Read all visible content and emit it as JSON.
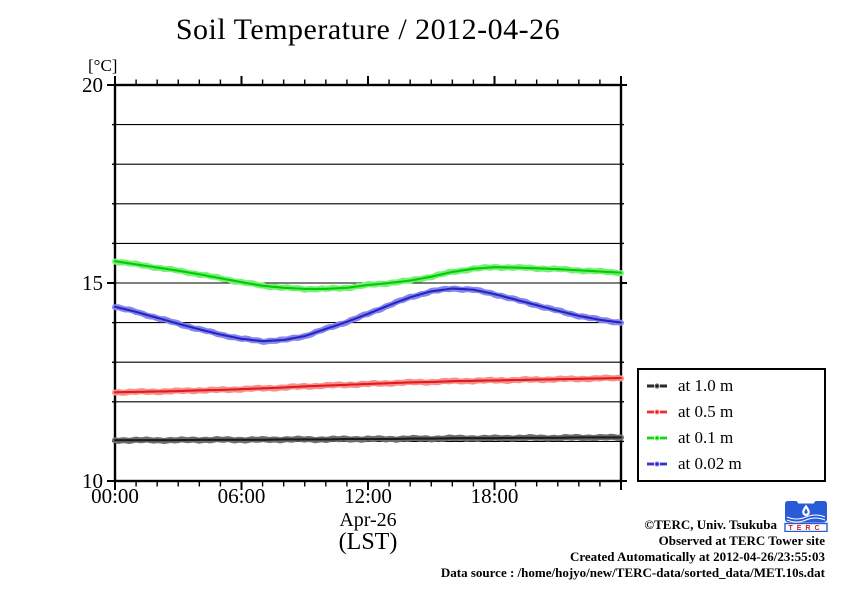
{
  "title": "Soil Temperature / 2012-04-26",
  "y_unit_label": "[°C]",
  "x_date_label": "Apr-26",
  "x_tz_label": "(LST)",
  "chart_data": {
    "type": "line",
    "title": "Soil Temperature / 2012-04-26",
    "xlabel": "Apr-26 (LST)",
    "ylabel": "[°C]",
    "xlim_hours": [
      0,
      24
    ],
    "ylim": [
      10,
      20
    ],
    "grid": "horizontal gridlines every 1 degC",
    "gridline_step": 1,
    "minor_xtick_every_hours": 1,
    "major_xtick_every_hours": 6,
    "legend_position": "outside-right-bottom",
    "yticks": [
      {
        "value": 10,
        "label": "10"
      },
      {
        "value": 15,
        "label": "15"
      },
      {
        "value": 20,
        "label": "20"
      }
    ],
    "xticks": [
      {
        "hour": 0,
        "label": "00:00"
      },
      {
        "hour": 6,
        "label": "06:00"
      },
      {
        "hour": 12,
        "label": "12:00"
      },
      {
        "hour": 18,
        "label": "18:00"
      }
    ],
    "x_hours": [
      0,
      1,
      2,
      3,
      4,
      5,
      6,
      7,
      8,
      9,
      10,
      11,
      12,
      13,
      14,
      15,
      16,
      17,
      18,
      19,
      20,
      21,
      22,
      23,
      24
    ],
    "series": [
      {
        "name": "at 1.0 m",
        "depth_m": 1.0,
        "color": "#1c1c1c",
        "halo": "#6e6e6e",
        "values": [
          11.03,
          11.03,
          11.03,
          11.03,
          11.04,
          11.04,
          11.04,
          11.04,
          11.05,
          11.05,
          11.05,
          11.06,
          11.06,
          11.06,
          11.07,
          11.07,
          11.08,
          11.08,
          11.08,
          11.09,
          11.09,
          11.09,
          11.1,
          11.1,
          11.1
        ]
      },
      {
        "name": "at 0.5 m",
        "depth_m": 0.5,
        "color": "#e41a1a",
        "halo": "#f78f8f",
        "values": [
          12.24,
          12.25,
          12.26,
          12.27,
          12.29,
          12.3,
          12.32,
          12.34,
          12.36,
          12.39,
          12.41,
          12.43,
          12.45,
          12.47,
          12.49,
          12.5,
          12.52,
          12.53,
          12.54,
          12.55,
          12.56,
          12.57,
          12.58,
          12.59,
          12.6
        ]
      },
      {
        "name": "at 0.1 m",
        "depth_m": 0.1,
        "color": "#00cc00",
        "halo": "#79ef79",
        "values": [
          15.55,
          15.47,
          15.39,
          15.31,
          15.22,
          15.12,
          15.02,
          14.93,
          14.88,
          14.85,
          14.85,
          14.88,
          14.95,
          15.0,
          15.06,
          15.16,
          15.28,
          15.36,
          15.4,
          15.39,
          15.37,
          15.35,
          15.32,
          15.29,
          15.26
        ]
      },
      {
        "name": "at 0.02 m",
        "depth_m": 0.02,
        "color": "#2424c4",
        "halo": "#8585ea",
        "values": [
          14.4,
          14.27,
          14.12,
          13.97,
          13.83,
          13.7,
          13.59,
          13.53,
          13.56,
          13.66,
          13.84,
          14.02,
          14.22,
          14.44,
          14.64,
          14.79,
          14.86,
          14.83,
          14.72,
          14.58,
          14.44,
          14.3,
          14.17,
          14.07,
          14.0
        ]
      }
    ]
  },
  "footer": {
    "credit": "©TERC, Univ. Tsukuba",
    "observed": "Observed at TERC Tower site",
    "created": "Created Automatically at 2012-04-26/23:55:03",
    "source": "Data source : /home/hojyo/new/TERC-data/sorted_data/MET.10s.dat",
    "logo_text": "TERC"
  },
  "colors": {
    "axis": "#000000",
    "background": "#ffffff",
    "logo_blue": "#2a5bd7",
    "logo_letters": "#d42020"
  }
}
